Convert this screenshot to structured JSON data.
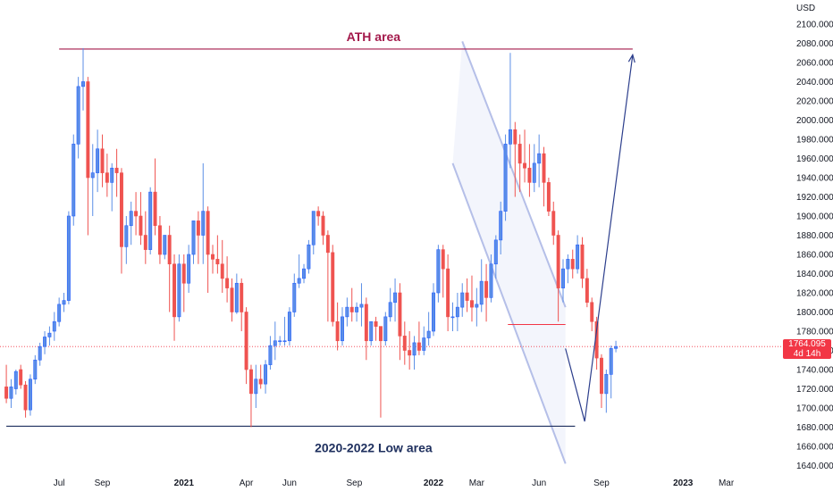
{
  "chart_data": {
    "type": "candlestick",
    "currency_label": "USD",
    "ylim": [
      1630,
      2110
    ],
    "y_ticks": [
      2100,
      2080,
      2060,
      2040,
      2020,
      2000,
      1980,
      1960,
      1940,
      1920,
      1900,
      1880,
      1860,
      1840,
      1820,
      1800,
      1780,
      1760,
      1740,
      1720,
      1700,
      1680,
      1660,
      1640
    ],
    "y_tick_labels": [
      "2100.000",
      "2080.000",
      "2060.000",
      "2040.000",
      "2020.000",
      "2000.000",
      "1980.000",
      "1960.000",
      "1940.000",
      "1920.000",
      "1900.000",
      "1880.000",
      "1860.000",
      "1840.000",
      "1820.000",
      "1800.000",
      "1780.000",
      "1760.000",
      "1740.000",
      "1720.000",
      "1700.000",
      "1680.000",
      "1660.000",
      "1640.000"
    ],
    "x_tick_labels": [
      {
        "label": "Jul",
        "year": false,
        "week": 11.5
      },
      {
        "label": "Sep",
        "year": false,
        "week": 20.5
      },
      {
        "label": "2021",
        "year": true,
        "week": 37.5
      },
      {
        "label": "Apr",
        "year": false,
        "week": 50.5
      },
      {
        "label": "Jun",
        "year": false,
        "week": 59.5
      },
      {
        "label": "Sep",
        "year": false,
        "week": 73
      },
      {
        "label": "2022",
        "year": true,
        "week": 89.5
      },
      {
        "label": "Mar",
        "year": false,
        "week": 98.5
      },
      {
        "label": "Jun",
        "year": false,
        "week": 111.5
      },
      {
        "label": "Sep",
        "year": false,
        "week": 124.5
      },
      {
        "label": "2023",
        "year": true,
        "week": 141.5
      },
      {
        "label": "Mar",
        "year": false,
        "week": 150.5
      }
    ],
    "candles": [
      [
        1722,
        1745,
        1705,
        1710
      ],
      [
        1710,
        1730,
        1700,
        1722
      ],
      [
        1720,
        1740,
        1714,
        1738
      ],
      [
        1740,
        1745,
        1720,
        1724
      ],
      [
        1724,
        1728,
        1690,
        1698
      ],
      [
        1698,
        1735,
        1692,
        1730
      ],
      [
        1730,
        1755,
        1725,
        1750
      ],
      [
        1750,
        1768,
        1744,
        1764
      ],
      [
        1764,
        1780,
        1756,
        1774
      ],
      [
        1774,
        1785,
        1765,
        1778
      ],
      [
        1780,
        1800,
        1770,
        1790
      ],
      [
        1790,
        1815,
        1785,
        1808
      ],
      [
        1808,
        1820,
        1800,
        1812
      ],
      [
        1812,
        1905,
        1808,
        1900
      ],
      [
        1900,
        1985,
        1890,
        1975
      ],
      [
        1975,
        2045,
        1960,
        2035
      ],
      [
        2035,
        2075,
        2010,
        2040
      ],
      [
        2040,
        2045,
        1880,
        1940
      ],
      [
        1940,
        1975,
        1900,
        1945
      ],
      [
        1945,
        1990,
        1925,
        1970
      ],
      [
        1970,
        1985,
        1930,
        1945
      ],
      [
        1945,
        1965,
        1920,
        1935
      ],
      [
        1935,
        1955,
        1905,
        1950
      ],
      [
        1950,
        1970,
        1920,
        1945
      ],
      [
        1945,
        1950,
        1840,
        1868
      ],
      [
        1868,
        1900,
        1850,
        1890
      ],
      [
        1890,
        1915,
        1870,
        1905
      ],
      [
        1905,
        1925,
        1880,
        1900
      ],
      [
        1900,
        1925,
        1870,
        1880
      ],
      [
        1880,
        1905,
        1850,
        1865
      ],
      [
        1865,
        1930,
        1860,
        1925
      ],
      [
        1925,
        1960,
        1880,
        1890
      ],
      [
        1890,
        1900,
        1850,
        1860
      ],
      [
        1860,
        1880,
        1855,
        1880
      ],
      [
        1880,
        1890,
        1800,
        1850
      ],
      [
        1850,
        1860,
        1770,
        1795
      ],
      [
        1795,
        1860,
        1790,
        1850
      ],
      [
        1850,
        1860,
        1800,
        1830
      ],
      [
        1830,
        1870,
        1820,
        1860
      ],
      [
        1860,
        1895,
        1850,
        1895
      ],
      [
        1895,
        1905,
        1850,
        1880
      ],
      [
        1880,
        1955,
        1850,
        1905
      ],
      [
        1905,
        1910,
        1820,
        1860
      ],
      [
        1860,
        1870,
        1840,
        1855
      ],
      [
        1855,
        1880,
        1840,
        1850
      ],
      [
        1850,
        1875,
        1820,
        1835
      ],
      [
        1835,
        1858,
        1810,
        1825
      ],
      [
        1825,
        1835,
        1790,
        1800
      ],
      [
        1800,
        1840,
        1798,
        1830
      ],
      [
        1830,
        1835,
        1780,
        1800
      ],
      [
        1800,
        1805,
        1725,
        1740
      ],
      [
        1740,
        1745,
        1680,
        1715
      ],
      [
        1715,
        1745,
        1700,
        1730
      ],
      [
        1730,
        1745,
        1720,
        1725
      ],
      [
        1725,
        1750,
        1715,
        1745
      ],
      [
        1745,
        1775,
        1740,
        1765
      ],
      [
        1765,
        1790,
        1750,
        1770
      ],
      [
        1770,
        1775,
        1765,
        1770
      ],
      [
        1770,
        1795,
        1765,
        1770
      ],
      [
        1770,
        1805,
        1765,
        1800
      ],
      [
        1800,
        1840,
        1795,
        1830
      ],
      [
        1830,
        1860,
        1825,
        1835
      ],
      [
        1835,
        1850,
        1830,
        1845
      ],
      [
        1845,
        1875,
        1840,
        1870
      ],
      [
        1870,
        1905,
        1860,
        1905
      ],
      [
        1905,
        1910,
        1890,
        1900
      ],
      [
        1900,
        1905,
        1870,
        1880
      ],
      [
        1880,
        1885,
        1790,
        1862
      ],
      [
        1862,
        1870,
        1785,
        1790
      ],
      [
        1790,
        1810,
        1760,
        1770
      ],
      [
        1770,
        1805,
        1765,
        1795
      ],
      [
        1795,
        1815,
        1785,
        1805
      ],
      [
        1805,
        1825,
        1790,
        1800
      ],
      [
        1800,
        1810,
        1790,
        1805
      ],
      [
        1805,
        1830,
        1785,
        1808
      ],
      [
        1808,
        1815,
        1750,
        1770
      ],
      [
        1770,
        1790,
        1765,
        1790
      ],
      [
        1790,
        1795,
        1770,
        1785
      ],
      [
        1785,
        1785,
        1690,
        1770
      ],
      [
        1770,
        1800,
        1765,
        1795
      ],
      [
        1795,
        1825,
        1790,
        1810
      ],
      [
        1810,
        1835,
        1790,
        1820
      ],
      [
        1820,
        1830,
        1750,
        1775
      ],
      [
        1775,
        1790,
        1745,
        1760
      ],
      [
        1760,
        1780,
        1740,
        1755
      ],
      [
        1755,
        1775,
        1740,
        1768
      ],
      [
        1768,
        1790,
        1755,
        1760
      ],
      [
        1760,
        1785,
        1755,
        1773
      ],
      [
        1773,
        1800,
        1765,
        1780
      ],
      [
        1780,
        1830,
        1775,
        1820
      ],
      [
        1820,
        1870,
        1810,
        1865
      ],
      [
        1865,
        1870,
        1815,
        1845
      ],
      [
        1845,
        1860,
        1780,
        1795
      ],
      [
        1795,
        1810,
        1780,
        1795
      ],
      [
        1795,
        1820,
        1780,
        1805
      ],
      [
        1805,
        1830,
        1795,
        1820
      ],
      [
        1820,
        1835,
        1800,
        1812
      ],
      [
        1812,
        1838,
        1790,
        1805
      ],
      [
        1805,
        1825,
        1785,
        1808
      ],
      [
        1808,
        1855,
        1800,
        1832
      ],
      [
        1832,
        1850,
        1790,
        1815
      ],
      [
        1815,
        1860,
        1810,
        1850
      ],
      [
        1850,
        1880,
        1835,
        1875
      ],
      [
        1875,
        1915,
        1860,
        1905
      ],
      [
        1905,
        1985,
        1895,
        1975
      ],
      [
        1975,
        2070,
        1950,
        1990
      ],
      [
        1990,
        1998,
        1920,
        1975
      ],
      [
        1975,
        1985,
        1925,
        1955
      ],
      [
        1955,
        1990,
        1935,
        1950
      ],
      [
        1950,
        1975,
        1920,
        1935
      ],
      [
        1935,
        1975,
        1925,
        1955
      ],
      [
        1955,
        1985,
        1930,
        1965
      ],
      [
        1965,
        1972,
        1910,
        1935
      ],
      [
        1935,
        1940,
        1900,
        1905
      ],
      [
        1905,
        1915,
        1870,
        1880
      ],
      [
        1880,
        1885,
        1790,
        1825
      ],
      [
        1825,
        1855,
        1810,
        1845
      ],
      [
        1845,
        1860,
        1830,
        1855
      ],
      [
        1855,
        1865,
        1835,
        1845
      ],
      [
        1845,
        1880,
        1840,
        1870
      ],
      [
        1870,
        1878,
        1825,
        1835
      ],
      [
        1835,
        1845,
        1805,
        1810
      ],
      [
        1810,
        1815,
        1780,
        1790
      ],
      [
        1790,
        1795,
        1740,
        1752
      ],
      [
        1752,
        1756,
        1700,
        1715
      ],
      [
        1715,
        1740,
        1695,
        1735
      ],
      [
        1735,
        1765,
        1710,
        1762
      ],
      [
        1762,
        1770,
        1758,
        1764
      ]
    ],
    "current_price_label": "1764.095",
    "countdown_label": "4d 14h",
    "colors": {
      "up": "#5b8ee6",
      "down": "#ef5350",
      "up_border": "#2962ff",
      "ath_line": "#a3194b",
      "low_line": "#1e2f5e",
      "arrow": "#2c3e8c",
      "channel": "#b5bfe8",
      "channel_fill": "#eef1fb",
      "price_line": "#f23645"
    },
    "annotations": {
      "ath_label": "ATH area",
      "ath_level": 2074,
      "ath_line_from_week": 11.5,
      "ath_line_to_week": 131,
      "low_label": "2020-2022 Low area",
      "low_level": 1681,
      "low_line_from_week": 0.5,
      "low_line_to_week": 119,
      "resistance_level": 1787,
      "resistance_from_week": 105,
      "resistance_to_week": 117,
      "channel_upper": [
        [
          95.5,
          2082
        ],
        [
          117,
          1805
        ]
      ],
      "channel_lower": [
        [
          93.5,
          1955
        ],
        [
          117,
          1642
        ]
      ],
      "projection": [
        [
          117,
          1762
        ],
        [
          121,
          1686
        ],
        [
          131,
          2068
        ]
      ]
    }
  }
}
